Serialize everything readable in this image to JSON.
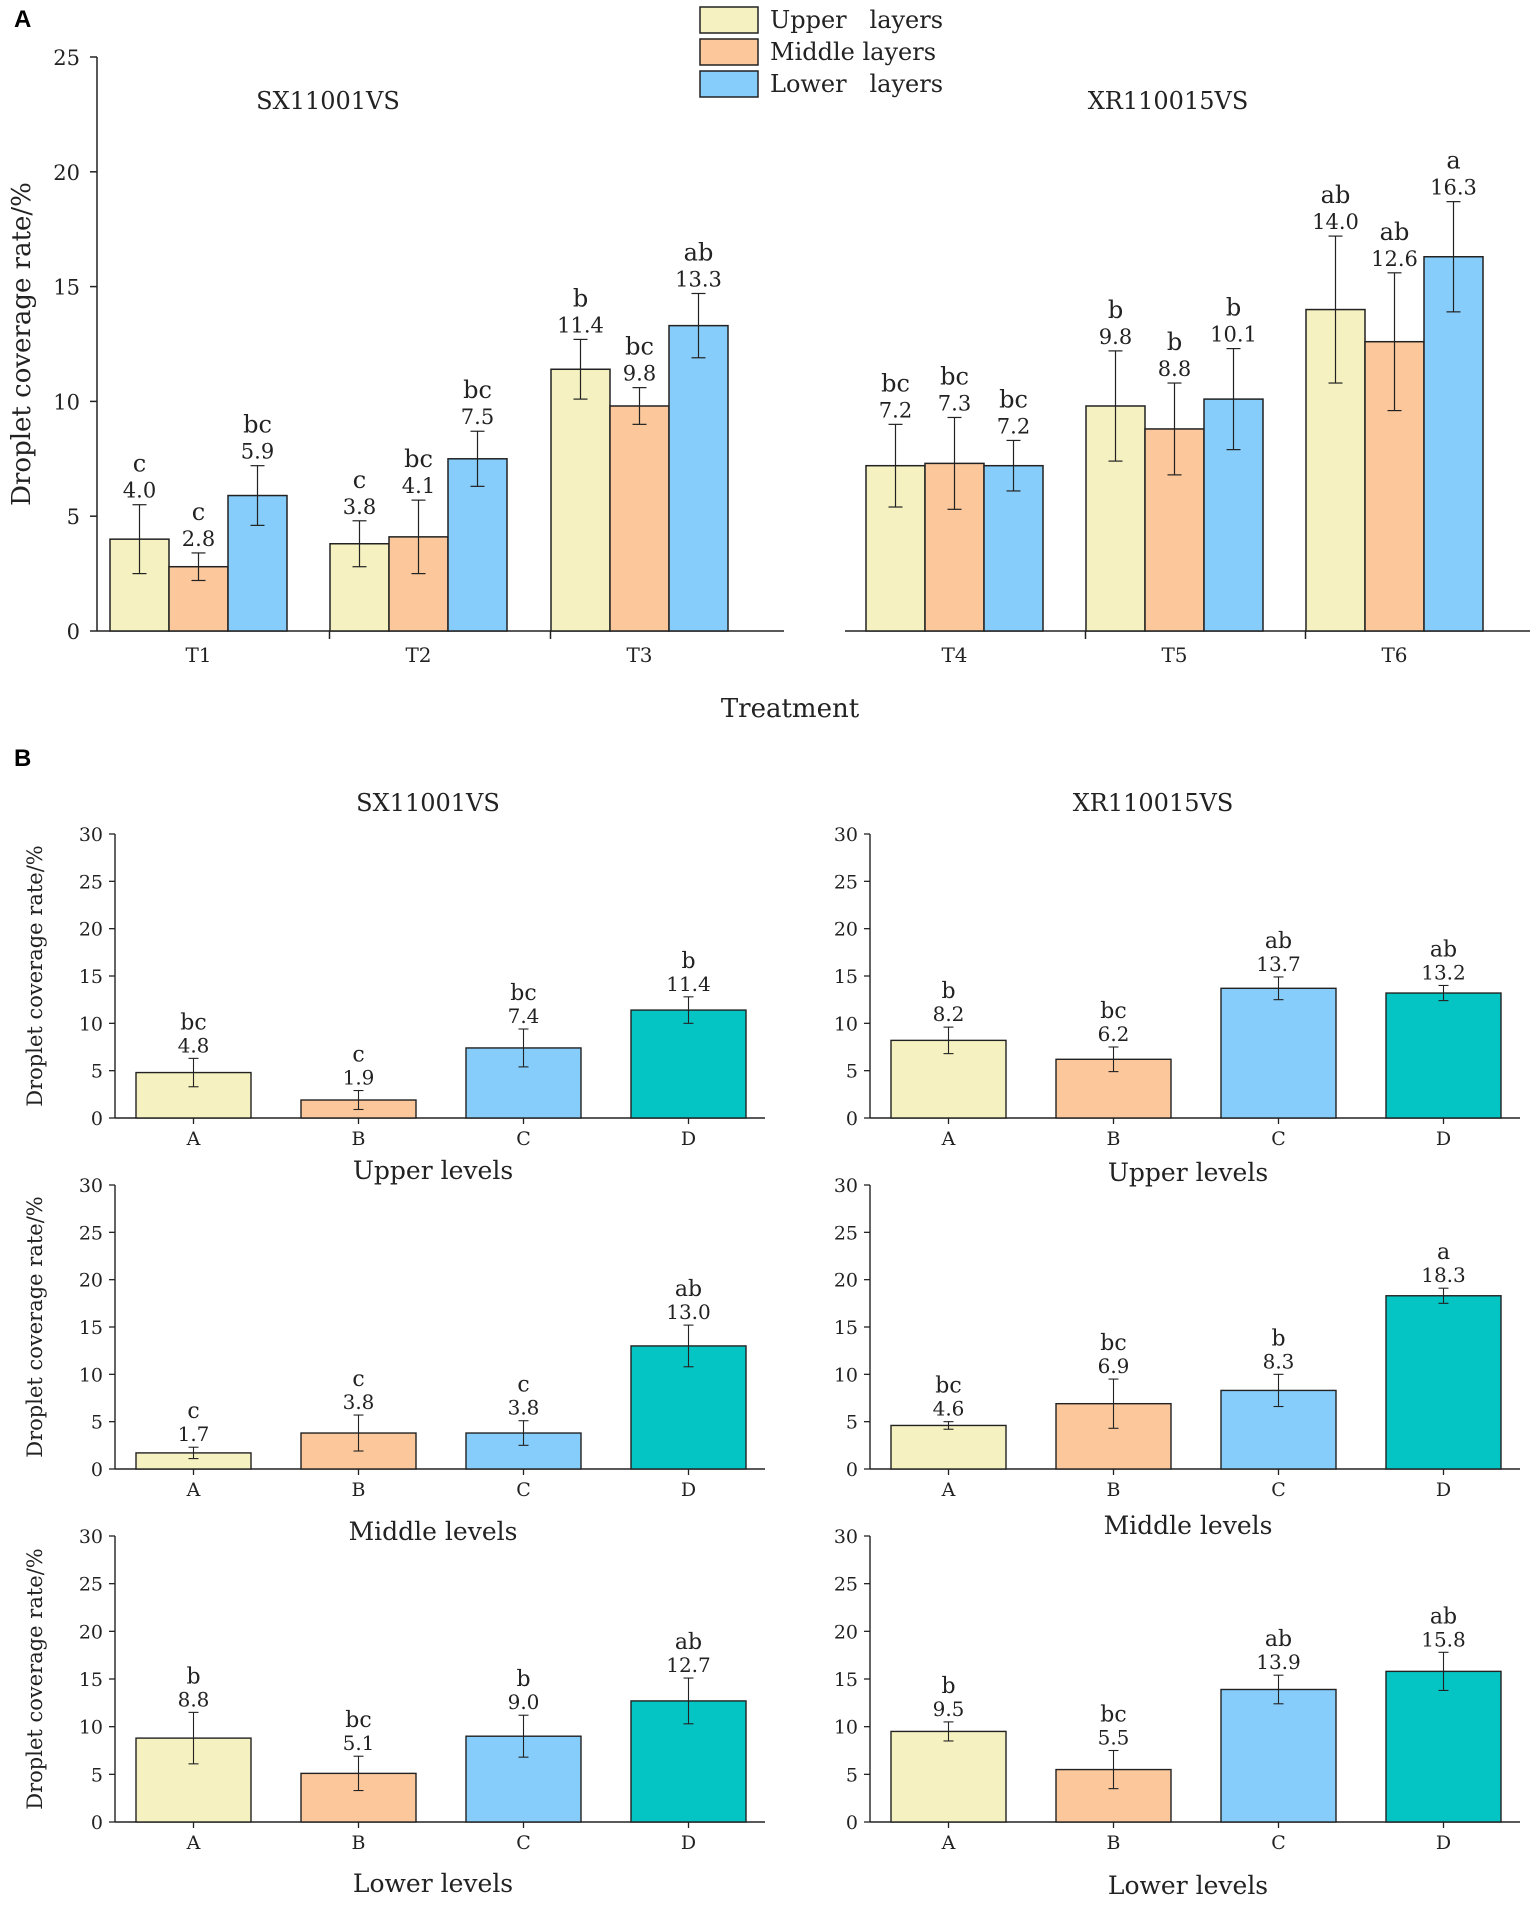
{
  "colors": {
    "upper": "#f5f1c0",
    "middle": "#fbc79b",
    "lower": "#86cdfb",
    "D": "#04c4c4",
    "stroke": "#222222"
  },
  "legend": {
    "items": [
      "Upper   layers",
      "Middle layers",
      "Lower   layers"
    ]
  },
  "panelA": {
    "letter": "A",
    "ylabel": "Droplet coverage rate/%",
    "xlabel": "Treatment",
    "ylim": [
      0,
      25
    ],
    "yticks": [
      0,
      5,
      10,
      15,
      20,
      25
    ],
    "chart_data": [
      {
        "type": "bar",
        "title": "SX11001VS",
        "categories": [
          "T1",
          "T2",
          "T3"
        ],
        "series": [
          {
            "name": "Upper layers",
            "values": [
              4.0,
              3.8,
              11.4
            ],
            "errors": [
              1.5,
              1.0,
              1.3
            ],
            "letters": [
              "c",
              "c",
              "b"
            ],
            "labels": [
              "4.0",
              "3.8",
              "11.4"
            ]
          },
          {
            "name": "Middle layers",
            "values": [
              2.8,
              4.1,
              9.8
            ],
            "errors": [
              0.6,
              1.6,
              0.8
            ],
            "letters": [
              "c",
              "bc",
              "bc"
            ],
            "labels": [
              "2.8",
              "4.1",
              "9.8"
            ]
          },
          {
            "name": "Lower layers",
            "values": [
              5.9,
              7.5,
              13.3
            ],
            "errors": [
              1.3,
              1.2,
              1.4
            ],
            "letters": [
              "bc",
              "bc",
              "ab"
            ],
            "labels": [
              "5.9",
              "7.5",
              "13.3"
            ]
          }
        ]
      },
      {
        "type": "bar",
        "title": "XR110015VS",
        "categories": [
          "T4",
          "T5",
          "T6"
        ],
        "series": [
          {
            "name": "Upper layers",
            "values": [
              7.2,
              9.8,
              14.0
            ],
            "errors": [
              1.8,
              2.4,
              3.2
            ],
            "letters": [
              "bc",
              "b",
              "ab"
            ],
            "labels": [
              "7.2",
              "9.8",
              "14.0"
            ]
          },
          {
            "name": "Middle layers",
            "values": [
              7.3,
              8.8,
              12.6
            ],
            "errors": [
              2.0,
              2.0,
              3.0
            ],
            "letters": [
              "bc",
              "b",
              "ab"
            ],
            "labels": [
              "7.3",
              "8.8",
              "12.6"
            ]
          },
          {
            "name": "Lower layers",
            "values": [
              7.2,
              10.1,
              16.3
            ],
            "errors": [
              1.1,
              2.2,
              2.4
            ],
            "letters": [
              "bc",
              "b",
              "a"
            ],
            "labels": [
              "7.2",
              "10.1",
              "16.3"
            ]
          }
        ]
      }
    ]
  },
  "panelB": {
    "letter": "B",
    "ylabel": "Droplet coverage rate/%",
    "ylim": [
      0,
      30
    ],
    "yticks": [
      0,
      5,
      10,
      15,
      20,
      25,
      30
    ],
    "titles": [
      "SX11001VS",
      "XR110015VS"
    ],
    "chart_data": [
      {
        "type": "bar",
        "nozzle": "SX11001VS",
        "level": "Upper levels",
        "categories": [
          "A",
          "B",
          "C",
          "D"
        ],
        "values": [
          4.8,
          1.9,
          7.4,
          11.4
        ],
        "errors": [
          1.5,
          1.0,
          2.0,
          1.4
        ],
        "letters": [
          "bc",
          "c",
          "bc",
          "b"
        ],
        "labels": [
          "4.8",
          "1.9",
          "7.4",
          "11.4"
        ]
      },
      {
        "type": "bar",
        "nozzle": "XR110015VS",
        "level": "Upper levels",
        "categories": [
          "A",
          "B",
          "C",
          "D"
        ],
        "values": [
          8.2,
          6.2,
          13.7,
          13.2
        ],
        "errors": [
          1.4,
          1.3,
          1.2,
          0.8
        ],
        "letters": [
          "b",
          "bc",
          "ab",
          "ab"
        ],
        "labels": [
          "8.2",
          "6.2",
          "13.7",
          "13.2"
        ]
      },
      {
        "type": "bar",
        "nozzle": "SX11001VS",
        "level": "Middle levels",
        "categories": [
          "A",
          "B",
          "C",
          "D"
        ],
        "values": [
          1.7,
          3.8,
          3.8,
          13.0
        ],
        "errors": [
          0.6,
          1.9,
          1.3,
          2.2
        ],
        "letters": [
          "c",
          "c",
          "c",
          "ab"
        ],
        "labels": [
          "1.7",
          "3.8",
          "3.8",
          "13.0"
        ]
      },
      {
        "type": "bar",
        "nozzle": "XR110015VS",
        "level": "Middle levels",
        "categories": [
          "A",
          "B",
          "C",
          "D"
        ],
        "values": [
          4.6,
          6.9,
          8.3,
          18.3
        ],
        "errors": [
          0.4,
          2.6,
          1.7,
          0.8
        ],
        "letters": [
          "bc",
          "bc",
          "b",
          "a"
        ],
        "labels": [
          "4.6",
          "6.9",
          "8.3",
          "18.3"
        ]
      },
      {
        "type": "bar",
        "nozzle": "SX11001VS",
        "level": "Lower levels",
        "categories": [
          "A",
          "B",
          "C",
          "D"
        ],
        "values": [
          8.8,
          5.1,
          9.0,
          12.7
        ],
        "errors": [
          2.7,
          1.8,
          2.2,
          2.4
        ],
        "letters": [
          "b",
          "bc",
          "b",
          "ab"
        ],
        "labels": [
          "8.8",
          "5.1",
          "9.0",
          "12.7"
        ]
      },
      {
        "type": "bar",
        "nozzle": "XR110015VS",
        "level": "Lower levels",
        "categories": [
          "A",
          "B",
          "C",
          "D"
        ],
        "values": [
          9.5,
          5.5,
          13.9,
          15.8
        ],
        "errors": [
          1.0,
          2.0,
          1.5,
          2.0
        ],
        "letters": [
          "b",
          "bc",
          "ab",
          "ab"
        ],
        "labels": [
          "9.5",
          "5.5",
          "13.9",
          "15.8"
        ]
      }
    ]
  }
}
